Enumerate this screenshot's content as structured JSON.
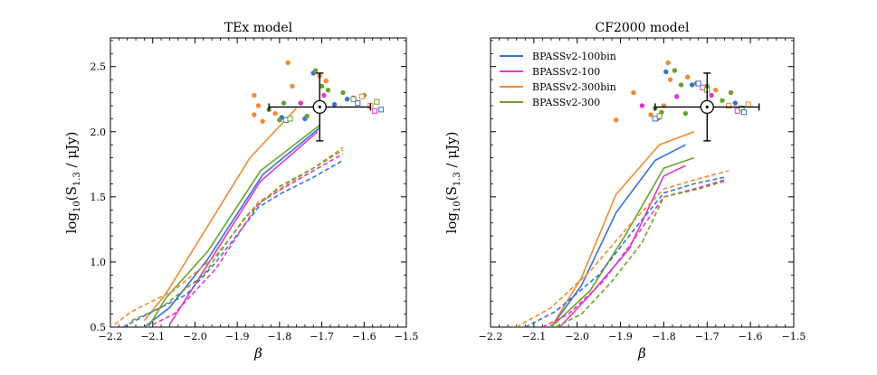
{
  "chart_data": [
    {
      "type": "line",
      "title": "TEx model",
      "xlabel": "β",
      "ylabel": "log10(S1.3 / μJy)",
      "ylabel_parts": {
        "base": "log",
        "sub1": "10",
        "mid": "(S",
        "sub2": "1.3",
        "end": " / μJy)"
      },
      "xlim": [
        -2.2,
        -1.5
      ],
      "ylim": [
        0.5,
        2.72
      ],
      "xticks": [
        -2.2,
        -2.1,
        -2.0,
        -1.9,
        -1.8,
        -1.7,
        -1.6,
        -1.5
      ],
      "xtick_labels": [
        "−2.2",
        "−2.1",
        "−2.0",
        "−1.9",
        "−1.8",
        "−1.7",
        "−1.6",
        "−1.5"
      ],
      "yticks": [
        0.5,
        1.0,
        1.5,
        2.0,
        2.5
      ],
      "ytick_labels": [
        "0.5",
        "1.0",
        "1.5",
        "2.0",
        "2.5"
      ],
      "series": [
        {
          "name": "BPASSv2-100bin",
          "color": "#3a6fd8",
          "style": "solid",
          "x": [
            -2.12,
            -2.06,
            -1.97,
            -1.84,
            -1.705
          ],
          "y": [
            0.5,
            0.65,
            1.02,
            1.67,
            2.03
          ]
        },
        {
          "name": "BPASSv2-100",
          "color": "#e535c8",
          "style": "solid",
          "x": [
            -2.06,
            -1.97,
            -1.845,
            -1.71
          ],
          "y": [
            0.52,
            0.98,
            1.62,
            2.0
          ]
        },
        {
          "name": "BPASSv2-300bin",
          "color": "#f28b30",
          "style": "solid",
          "x": [
            -2.12,
            -2.07,
            -1.87,
            -1.76
          ],
          "y": [
            0.55,
            0.75,
            1.8,
            2.18
          ]
        },
        {
          "name": "BPASSv2-300",
          "color": "#6aa22c",
          "style": "solid",
          "x": [
            -2.11,
            -2.07,
            -1.97,
            -1.845,
            -1.705
          ],
          "y": [
            0.5,
            0.72,
            1.08,
            1.7,
            2.05
          ]
        },
        {
          "name": "BPASSv2-100bin",
          "color": "#3a6fd8",
          "style": "dashed",
          "x": [
            -2.17,
            -2.1,
            -2.02,
            -1.95,
            -1.85,
            -1.8,
            -1.72,
            -1.65
          ],
          "y": [
            0.5,
            0.62,
            0.75,
            1.0,
            1.42,
            1.52,
            1.65,
            1.78
          ]
        },
        {
          "name": "BPASSv2-100",
          "color": "#e535c8",
          "style": "dashed",
          "x": [
            -2.1,
            -2.05,
            -1.95,
            -1.85,
            -1.8,
            -1.72,
            -1.65
          ],
          "y": [
            0.52,
            0.6,
            0.95,
            1.45,
            1.55,
            1.7,
            1.83
          ]
        },
        {
          "name": "BPASSv2-300bin",
          "color": "#f28b30",
          "style": "dashed",
          "x": [
            -2.19,
            -2.15,
            -2.05,
            -1.95,
            -1.85,
            -1.8,
            -1.72,
            -1.65
          ],
          "y": [
            0.52,
            0.62,
            0.78,
            1.05,
            1.46,
            1.56,
            1.72,
            1.88
          ]
        },
        {
          "name": "BPASSv2-300",
          "color": "#6aa22c",
          "style": "dashed",
          "x": [
            -2.15,
            -2.08,
            -1.98,
            -1.88,
            -1.8,
            -1.72,
            -1.65
          ],
          "y": [
            0.55,
            0.65,
            0.9,
            1.35,
            1.58,
            1.72,
            1.86
          ]
        }
      ],
      "stack_point": {
        "x": -1.705,
        "y": 2.19,
        "xerr": 0.12,
        "yerr": 0.26
      },
      "scatter_dots": [
        {
          "x": -1.86,
          "y": 2.28,
          "color": "#f28b30"
        },
        {
          "x": -1.86,
          "y": 2.13,
          "color": "#f28b30"
        },
        {
          "x": -1.85,
          "y": 2.2,
          "color": "#f28b30"
        },
        {
          "x": -1.84,
          "y": 2.08,
          "color": "#f28b30"
        },
        {
          "x": -1.81,
          "y": 2.14,
          "color": "#f28b30"
        },
        {
          "x": -1.79,
          "y": 2.22,
          "color": "#6aa22c"
        },
        {
          "x": -1.78,
          "y": 2.53,
          "color": "#f28b30"
        },
        {
          "x": -1.77,
          "y": 2.35,
          "color": "#f28b30"
        },
        {
          "x": -1.75,
          "y": 2.22,
          "color": "#e535c8"
        },
        {
          "x": -1.74,
          "y": 2.1,
          "color": "#3a6fd8"
        },
        {
          "x": -1.735,
          "y": 2.12,
          "color": "#6aa22c"
        },
        {
          "x": -1.72,
          "y": 2.45,
          "color": "#3a6fd8"
        },
        {
          "x": -1.715,
          "y": 2.47,
          "color": "#6aa22c"
        },
        {
          "x": -1.705,
          "y": 2.43,
          "color": "#f28b30"
        },
        {
          "x": -1.7,
          "y": 2.35,
          "color": "#6aa22c"
        },
        {
          "x": -1.695,
          "y": 2.28,
          "color": "#e535c8"
        },
        {
          "x": -1.69,
          "y": 2.39,
          "color": "#f28b30"
        },
        {
          "x": -1.685,
          "y": 2.32,
          "color": "#6aa22c"
        },
        {
          "x": -1.67,
          "y": 2.21,
          "color": "#3a6fd8"
        },
        {
          "x": -1.65,
          "y": 2.3,
          "color": "#6aa22c"
        },
        {
          "x": -1.64,
          "y": 2.25,
          "color": "#3a6fd8"
        },
        {
          "x": -1.625,
          "y": 2.26,
          "color": "#e535c8"
        },
        {
          "x": -1.6,
          "y": 2.28,
          "color": "#6aa22c"
        },
        {
          "x": -1.825,
          "y": 2.17,
          "color": "#6aa22c"
        },
        {
          "x": -1.795,
          "y": 2.11,
          "color": "#3a6fd8"
        },
        {
          "x": -1.8,
          "y": 2.09,
          "color": "#6aa22c"
        }
      ],
      "scatter_squares": [
        {
          "x": -1.785,
          "y": 2.09,
          "color": "#3a6fd8"
        },
        {
          "x": -1.775,
          "y": 2.1,
          "color": "#6aa22c"
        },
        {
          "x": -1.625,
          "y": 2.25,
          "color": "#6aa22c"
        },
        {
          "x": -1.615,
          "y": 2.22,
          "color": "#3a6fd8"
        },
        {
          "x": -1.605,
          "y": 2.27,
          "color": "#f28b30"
        },
        {
          "x": -1.585,
          "y": 2.2,
          "color": "#f28b30"
        },
        {
          "x": -1.57,
          "y": 2.23,
          "color": "#6aa22c"
        },
        {
          "x": -1.56,
          "y": 2.17,
          "color": "#3a6fd8"
        },
        {
          "x": -1.575,
          "y": 2.16,
          "color": "#e535c8"
        }
      ]
    },
    {
      "type": "line",
      "title": "CF2000 model",
      "xlabel": "β",
      "ylabel": "log10(S1.3 / μJy)",
      "ylabel_parts": {
        "base": "log",
        "sub1": "10",
        "mid": "(S",
        "sub2": "1.3",
        "end": " / μJy)"
      },
      "xlim": [
        -2.2,
        -1.5
      ],
      "ylim": [
        0.5,
        2.72
      ],
      "xticks": [
        -2.2,
        -2.1,
        -2.0,
        -1.9,
        -1.8,
        -1.7,
        -1.6,
        -1.5
      ],
      "xtick_labels": [
        "−2.2",
        "−2.1",
        "−2.0",
        "−1.9",
        "−1.8",
        "−1.7",
        "−1.6",
        "−1.5"
      ],
      "yticks": [
        0.5,
        1.0,
        1.5,
        2.0,
        2.5
      ],
      "ytick_labels": [],
      "legend": {
        "placement": "top-left",
        "entries": [
          {
            "label": "BPASSv2-100bin",
            "color": "#3a6fd8"
          },
          {
            "label": "BPASSv2-100",
            "color": "#e535c8"
          },
          {
            "label": "BPASSv2-300bin",
            "color": "#f28b30"
          },
          {
            "label": "BPASSv2-300",
            "color": "#6aa22c"
          }
        ]
      },
      "series": [
        {
          "name": "BPASSv2-100bin",
          "color": "#3a6fd8",
          "style": "solid",
          "x": [
            -2.06,
            -1.99,
            -1.91,
            -1.82,
            -1.75
          ],
          "y": [
            0.5,
            0.82,
            1.38,
            1.78,
            1.9
          ]
        },
        {
          "name": "BPASSv2-100",
          "color": "#e535c8",
          "style": "solid",
          "x": [
            -2.04,
            -1.97,
            -1.88,
            -1.8,
            -1.75
          ],
          "y": [
            0.5,
            0.75,
            1.1,
            1.66,
            1.74
          ]
        },
        {
          "name": "BPASSv2-300bin",
          "color": "#f28b30",
          "style": "solid",
          "x": [
            -2.06,
            -1.99,
            -1.91,
            -1.81,
            -1.73
          ],
          "y": [
            0.5,
            0.88,
            1.52,
            1.9,
            2.0
          ]
        },
        {
          "name": "BPASSv2-300",
          "color": "#6aa22c",
          "style": "solid",
          "x": [
            -2.06,
            -1.97,
            -1.89,
            -1.8,
            -1.73
          ],
          "y": [
            0.5,
            0.78,
            1.2,
            1.72,
            1.8
          ]
        },
        {
          "name": "BPASSv2-100bin",
          "color": "#3a6fd8",
          "style": "dashed",
          "x": [
            -2.12,
            -2.05,
            -1.95,
            -1.88,
            -1.8,
            -1.73,
            -1.66
          ],
          "y": [
            0.5,
            0.62,
            0.9,
            1.2,
            1.53,
            1.6,
            1.65
          ]
        },
        {
          "name": "BPASSv2-100",
          "color": "#e535c8",
          "style": "dashed",
          "x": [
            -2.08,
            -2.02,
            -1.94,
            -1.88,
            -1.8,
            -1.72,
            -1.66
          ],
          "y": [
            0.5,
            0.6,
            0.85,
            1.12,
            1.5,
            1.57,
            1.63
          ]
        },
        {
          "name": "BPASSv2-300bin",
          "color": "#f28b30",
          "style": "dashed",
          "x": [
            -2.14,
            -2.06,
            -1.97,
            -1.88,
            -1.8,
            -1.72,
            -1.65
          ],
          "y": [
            0.5,
            0.65,
            0.93,
            1.28,
            1.56,
            1.64,
            1.7
          ]
        },
        {
          "name": "BPASSv2-300",
          "color": "#6aa22c",
          "style": "dashed",
          "x": [
            -2.05,
            -1.99,
            -1.92,
            -1.85,
            -1.8,
            -1.72,
            -1.66
          ],
          "y": [
            0.5,
            0.6,
            0.85,
            1.15,
            1.5,
            1.56,
            1.62
          ]
        }
      ],
      "stack_point": {
        "x": -1.7,
        "y": 2.19,
        "xerr": 0.12,
        "yerr": 0.26
      },
      "scatter_dots": [
        {
          "x": -1.91,
          "y": 2.09,
          "color": "#f28b30"
        },
        {
          "x": -1.87,
          "y": 2.3,
          "color": "#f28b30"
        },
        {
          "x": -1.85,
          "y": 2.2,
          "color": "#e535c8"
        },
        {
          "x": -1.83,
          "y": 2.13,
          "color": "#f28b30"
        },
        {
          "x": -1.82,
          "y": 2.18,
          "color": "#6aa22c"
        },
        {
          "x": -1.81,
          "y": 2.11,
          "color": "#3a6fd8"
        },
        {
          "x": -1.8,
          "y": 2.2,
          "color": "#f28b30"
        },
        {
          "x": -1.795,
          "y": 2.46,
          "color": "#3a6fd8"
        },
        {
          "x": -1.79,
          "y": 2.53,
          "color": "#f28b30"
        },
        {
          "x": -1.785,
          "y": 2.4,
          "color": "#f28b30"
        },
        {
          "x": -1.775,
          "y": 2.47,
          "color": "#6aa22c"
        },
        {
          "x": -1.77,
          "y": 2.27,
          "color": "#e535c8"
        },
        {
          "x": -1.76,
          "y": 2.36,
          "color": "#6aa22c"
        },
        {
          "x": -1.75,
          "y": 2.14,
          "color": "#6aa22c"
        },
        {
          "x": -1.745,
          "y": 2.42,
          "color": "#f28b30"
        },
        {
          "x": -1.735,
          "y": 2.36,
          "color": "#3a6fd8"
        },
        {
          "x": -1.725,
          "y": 2.37,
          "color": "#6aa22c"
        },
        {
          "x": -1.7,
          "y": 2.35,
          "color": "#6aa22c"
        },
        {
          "x": -1.69,
          "y": 2.28,
          "color": "#e535c8"
        },
        {
          "x": -1.68,
          "y": 2.32,
          "color": "#f28b30"
        },
        {
          "x": -1.665,
          "y": 2.24,
          "color": "#6aa22c"
        },
        {
          "x": -1.645,
          "y": 2.3,
          "color": "#6aa22c"
        },
        {
          "x": -1.635,
          "y": 2.22,
          "color": "#3a6fd8"
        },
        {
          "x": -1.815,
          "y": 2.1,
          "color": "#e535c8"
        },
        {
          "x": -1.805,
          "y": 2.15,
          "color": "#6aa22c"
        }
      ],
      "scatter_squares": [
        {
          "x": -1.82,
          "y": 2.1,
          "color": "#3a6fd8"
        },
        {
          "x": -1.81,
          "y": 2.12,
          "color": "#6aa22c"
        },
        {
          "x": -1.72,
          "y": 2.37,
          "color": "#3a6fd8"
        },
        {
          "x": -1.71,
          "y": 2.34,
          "color": "#e535c8"
        },
        {
          "x": -1.7,
          "y": 2.32,
          "color": "#6aa22c"
        },
        {
          "x": -1.65,
          "y": 2.2,
          "color": "#f28b30"
        },
        {
          "x": -1.63,
          "y": 2.16,
          "color": "#e535c8"
        },
        {
          "x": -1.62,
          "y": 2.18,
          "color": "#6aa22c"
        },
        {
          "x": -1.615,
          "y": 2.15,
          "color": "#3a6fd8"
        },
        {
          "x": -1.605,
          "y": 2.21,
          "color": "#f28b30"
        }
      ]
    }
  ]
}
